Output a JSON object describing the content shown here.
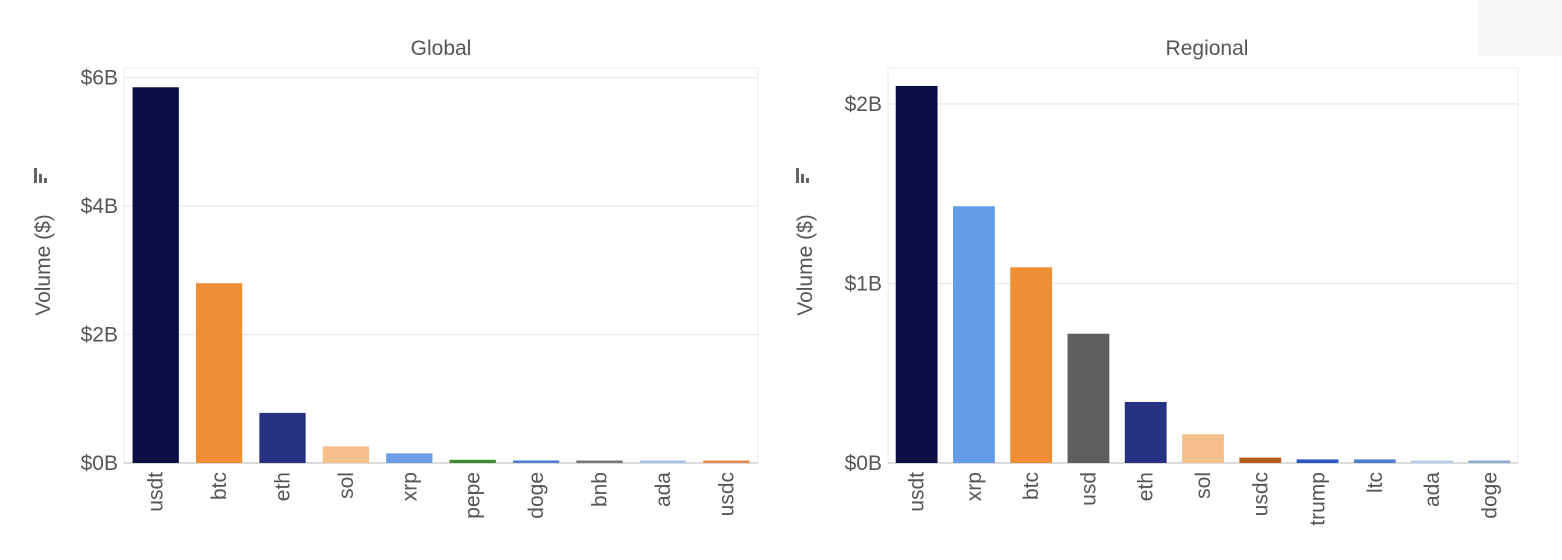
{
  "chart_data": [
    {
      "type": "bar",
      "title": "Global",
      "ylabel": "Volume ($)",
      "xlabel": "",
      "ylim": [
        0,
        6.15
      ],
      "y_ticks": [
        {
          "value": 0,
          "label": "$0B"
        },
        {
          "value": 2,
          "label": "$2B"
        },
        {
          "value": 4,
          "label": "$4B"
        },
        {
          "value": 6,
          "label": "$6B"
        }
      ],
      "y_unit": "billions USD",
      "grid": true,
      "legend": "none",
      "categories": [
        "usdt",
        "btc",
        "eth",
        "sol",
        "xrp",
        "pepe",
        "doge",
        "bnb",
        "ada",
        "usdc"
      ],
      "values": [
        5.85,
        2.8,
        0.78,
        0.26,
        0.15,
        0.05,
        0.04,
        0.02,
        0.01,
        0.02
      ],
      "colors": [
        "#0b0d45",
        "#ef8e35",
        "#26317f",
        "#f5bf8c",
        "#6a9de6",
        "#3d8b2b",
        "#4f7ecf",
        "#777777",
        "#a9c4ea",
        "#e4874a"
      ]
    },
    {
      "type": "bar",
      "title": "Regional",
      "ylabel": "Volume ($)",
      "xlabel": "",
      "ylim": [
        0,
        2.2
      ],
      "y_ticks": [
        {
          "value": 0,
          "label": "$0B"
        },
        {
          "value": 1,
          "label": "$1B"
        },
        {
          "value": 2,
          "label": "$2B"
        }
      ],
      "y_unit": "billions USD",
      "grid": true,
      "legend": "none",
      "categories": [
        "usdt",
        "xrp",
        "btc",
        "usd",
        "eth",
        "sol",
        "usdc",
        "trump",
        "ltc",
        "ada",
        "doge"
      ],
      "values": [
        2.1,
        1.43,
        1.09,
        0.72,
        0.34,
        0.16,
        0.03,
        0.02,
        0.02,
        0.005,
        0.01
      ],
      "colors": [
        "#0b0d45",
        "#629be6",
        "#ef8e35",
        "#5e5e5e",
        "#26317f",
        "#f5bf8c",
        "#b85a1c",
        "#2c58c3",
        "#4f7ecf",
        "#b8cde8",
        "#8fa9d2"
      ]
    }
  ]
}
